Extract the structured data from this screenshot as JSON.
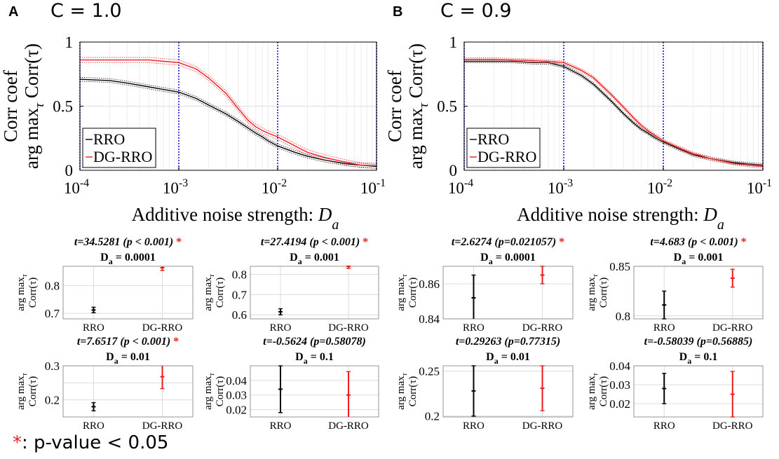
{
  "colors": {
    "rro": "#000000",
    "dg": "#ee1c1c",
    "vline": "#1a1ad6",
    "grid": "#dcdcdc",
    "sig": "#e8201c"
  },
  "footnote": {
    "star": "*",
    "text": ": p-value < 0.05"
  },
  "panels": [
    {
      "letter": "A",
      "condition": "C = 1.0",
      "main_chart": {
        "type": "line",
        "xscale": "log",
        "x": [
          0.0001,
          0.0002,
          0.0003,
          0.0005,
          0.0007,
          0.001,
          0.0015,
          0.002,
          0.003,
          0.004,
          0.005,
          0.006,
          0.007,
          0.008,
          0.01,
          0.015,
          0.02,
          0.03,
          0.05,
          0.07,
          0.1
        ],
        "xlim": [
          0.0001,
          0.1
        ],
        "ylim": [
          0,
          1
        ],
        "xticks": [
          0.0001,
          0.001,
          0.01,
          0.1
        ],
        "xtick_labels": [
          {
            "base": "10",
            "exp": "-4"
          },
          {
            "base": "10",
            "exp": "-3"
          },
          {
            "base": "10",
            "exp": "-2"
          },
          {
            "base": "10",
            "exp": "-1"
          }
        ],
        "yticks": [
          0,
          0.5,
          1
        ],
        "ytick_labels": [
          "0",
          "0.5",
          "1"
        ],
        "xlabel": "Additive noise strength:",
        "xlabel_symbol": "D",
        "xlabel_sub": "a",
        "ylabel_line1": "Corr coef",
        "ylabel_line2_pre": "arg max",
        "ylabel_line2_sub": "τ",
        "ylabel_line2_post": "Corr(τ)",
        "vlines": [
          0.0001,
          0.001,
          0.01,
          0.1
        ],
        "legend": [
          "RRO",
          "DG-RRO"
        ],
        "series": [
          {
            "name": "RRO",
            "values": [
              0.71,
              0.7,
              0.68,
              0.65,
              0.63,
              0.61,
              0.56,
              0.51,
              0.44,
              0.38,
              0.33,
              0.29,
              0.26,
              0.23,
              0.19,
              0.14,
              0.11,
              0.08,
              0.05,
              0.04,
              0.03
            ],
            "band": 0.015
          },
          {
            "name": "DG-RRO",
            "values": [
              0.86,
              0.86,
              0.86,
              0.86,
              0.85,
              0.84,
              0.79,
              0.72,
              0.6,
              0.48,
              0.39,
              0.34,
              0.31,
              0.29,
              0.26,
              0.19,
              0.14,
              0.1,
              0.06,
              0.04,
              0.035
            ],
            "band": 0.02
          }
        ]
      },
      "subplots": [
        {
          "title": "t=34.5281 (p < 0.001)",
          "sig": true,
          "da_label": "= 0.0001",
          "ylim": [
            0.68,
            0.87
          ],
          "yticks": [
            0.7,
            0.8
          ],
          "ytick_labels": [
            "0.7",
            "0.8"
          ],
          "rro": {
            "mean": 0.712,
            "err": 0.01
          },
          "dg": {
            "mean": 0.865,
            "err": 0.01
          },
          "categories": [
            "RRO",
            "DG-RRO"
          ]
        },
        {
          "title": "t=27.4194 (p < 0.001)",
          "sig": true,
          "da_label": "= 0.001",
          "ylim": [
            0.58,
            0.84
          ],
          "yticks": [
            0.6,
            0.7,
            0.8
          ],
          "ytick_labels": [
            "0.6",
            "0.7",
            "0.8"
          ],
          "rro": {
            "mean": 0.615,
            "err": 0.015
          },
          "dg": {
            "mean": 0.84,
            "err": 0.01
          },
          "categories": [
            "RRO",
            "DG-RRO"
          ]
        },
        {
          "title": "t=7.6517 (p < 0.001)",
          "sig": true,
          "da_label": "= 0.01",
          "ylim": [
            0.15,
            0.3
          ],
          "yticks": [
            0.2,
            0.25,
            0.3
          ],
          "ytick_labels": [
            "0.2",
            "",
            "0.3"
          ],
          "rro": {
            "mean": 0.18,
            "err": 0.012
          },
          "dg": {
            "mean": 0.268,
            "err": 0.035
          },
          "categories": [
            "RRO",
            "DG-RRO"
          ]
        },
        {
          "title": "t=-0.5624 (p=0.58078)",
          "sig": false,
          "da_label": "= 0.1",
          "ylim": [
            0.015,
            0.05
          ],
          "yticks": [
            0.02,
            0.03,
            0.04
          ],
          "ytick_labels": [
            "0.02",
            "0.03",
            "0.04"
          ],
          "rro": {
            "mean": 0.034,
            "err": 0.016
          },
          "dg": {
            "mean": 0.03,
            "err": 0.016
          },
          "categories": [
            "RRO",
            "DG-RRO"
          ]
        }
      ]
    },
    {
      "letter": "B",
      "condition": "C = 0.9",
      "main_chart": {
        "type": "line",
        "xscale": "log",
        "x": [
          0.0001,
          0.0002,
          0.0003,
          0.0005,
          0.0007,
          0.001,
          0.0015,
          0.002,
          0.003,
          0.004,
          0.005,
          0.006,
          0.007,
          0.008,
          0.01,
          0.015,
          0.02,
          0.03,
          0.05,
          0.07,
          0.1
        ],
        "xlim": [
          0.0001,
          0.1
        ],
        "ylim": [
          0,
          1
        ],
        "xticks": [
          0.0001,
          0.001,
          0.01,
          0.1
        ],
        "xtick_labels": [
          {
            "base": "10",
            "exp": "-4"
          },
          {
            "base": "10",
            "exp": "-3"
          },
          {
            "base": "10",
            "exp": "-2"
          },
          {
            "base": "10",
            "exp": "-1"
          }
        ],
        "yticks": [
          0,
          0.5,
          1
        ],
        "ytick_labels": [
          "0",
          "0.5",
          "1"
        ],
        "xlabel": "Additive noise strength:",
        "xlabel_symbol": "D",
        "xlabel_sub": "a",
        "ylabel_line1": "Corr coef",
        "ylabel_line2_pre": "arg max",
        "ylabel_line2_sub": "τ",
        "ylabel_line2_post": "Corr(τ)",
        "vlines": [
          0.0001,
          0.001,
          0.01,
          0.1
        ],
        "legend": [
          "RRO",
          "DG-RRO"
        ],
        "series": [
          {
            "name": "RRO",
            "values": [
              0.85,
              0.85,
              0.85,
              0.84,
              0.84,
              0.81,
              0.74,
              0.67,
              0.54,
              0.44,
              0.37,
              0.32,
              0.29,
              0.26,
              0.22,
              0.16,
              0.12,
              0.09,
              0.06,
              0.05,
              0.04
            ],
            "band": 0.012
          },
          {
            "name": "DG-RRO",
            "values": [
              0.865,
              0.865,
              0.86,
              0.855,
              0.85,
              0.84,
              0.78,
              0.72,
              0.59,
              0.49,
              0.41,
              0.35,
              0.31,
              0.28,
              0.23,
              0.17,
              0.13,
              0.09,
              0.055,
              0.04,
              0.03
            ],
            "band": 0.012
          }
        ]
      },
      "subplots": [
        {
          "title": "t=2.6274 (p=0.021057)",
          "sig": true,
          "da_label": "= 0.0001",
          "ylim": [
            0.84,
            0.87
          ],
          "yticks": [
            0.84,
            0.86
          ],
          "ytick_labels": [
            "0.84",
            "0.86"
          ],
          "rro": {
            "mean": 0.852,
            "err": 0.013
          },
          "dg": {
            "mean": 0.865,
            "err": 0.005
          },
          "categories": [
            "RRO",
            "DG-RRO"
          ]
        },
        {
          "title": "t=4.683 (p < 0.001)",
          "sig": true,
          "da_label": "= 0.001",
          "ylim": [
            0.797,
            0.85
          ],
          "yticks": [
            0.8,
            0.85
          ],
          "ytick_labels": [
            "0.8",
            "0.85"
          ],
          "rro": {
            "mean": 0.811,
            "err": 0.014
          },
          "dg": {
            "mean": 0.838,
            "err": 0.009
          },
          "categories": [
            "RRO",
            "DG-RRO"
          ]
        },
        {
          "title": "t=0.29263 (p=0.77315)",
          "sig": false,
          "da_label": "= 0.01",
          "ylim": [
            0.199,
            0.256
          ],
          "yticks": [
            0.2,
            0.25
          ],
          "ytick_labels": [
            "0.2",
            "0.25"
          ],
          "rro": {
            "mean": 0.228,
            "err": 0.028
          },
          "dg": {
            "mean": 0.231,
            "err": 0.025
          },
          "categories": [
            "RRO",
            "DG-RRO"
          ]
        },
        {
          "title": "t=-0.58039 (p=0.56885)",
          "sig": false,
          "da_label": "= 0.1",
          "ylim": [
            0.013,
            0.04
          ],
          "yticks": [
            0.02,
            0.03,
            0.04
          ],
          "ytick_labels": [
            "0.02",
            "0.03",
            "0.04"
          ],
          "rro": {
            "mean": 0.028,
            "err": 0.008
          },
          "dg": {
            "mean": 0.025,
            "err": 0.012
          },
          "categories": [
            "RRO",
            "DG-RRO"
          ]
        }
      ]
    }
  ]
}
